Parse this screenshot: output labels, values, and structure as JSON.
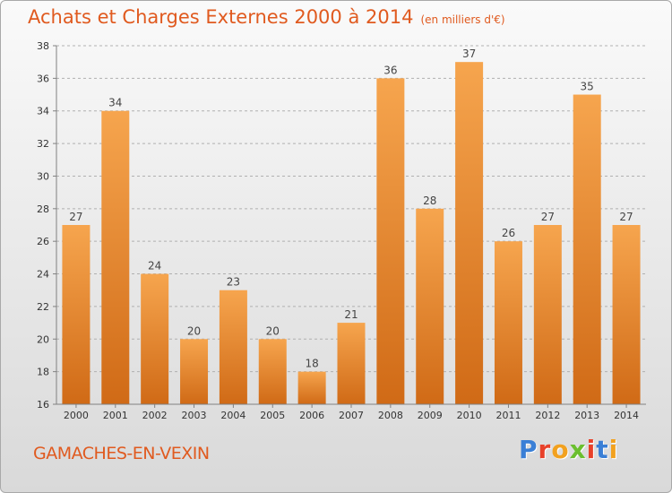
{
  "title": "Achats et Charges Externes 2000 à 2014",
  "unit": "(en milliers d'€)",
  "city": "GAMACHES-EN-VEXIN",
  "brand": {
    "text": "Proxiti",
    "colors": [
      "#3a7fd6",
      "#e8412a",
      "#f2a11f",
      "#6bbf2f",
      "#e8412a",
      "#3a7fd6",
      "#f2a11f"
    ]
  },
  "colors": {
    "accent": "#e05a1f",
    "bar_top": "#f6a54e",
    "bar_bottom": "#d06a16",
    "axis": "#808080",
    "grid": "#b0b0b0"
  },
  "chart_data": {
    "type": "bar",
    "categories": [
      "2000",
      "2001",
      "2002",
      "2003",
      "2004",
      "2005",
      "2006",
      "2007",
      "2008",
      "2009",
      "2010",
      "2011",
      "2012",
      "2013",
      "2014"
    ],
    "values": [
      27,
      34,
      24,
      20,
      23,
      20,
      18,
      21,
      36,
      28,
      37,
      26,
      27,
      35,
      27
    ],
    "ylim": [
      16,
      38
    ],
    "yticks": [
      16,
      18,
      20,
      22,
      24,
      26,
      28,
      30,
      32,
      34,
      36,
      38
    ],
    "grid": true,
    "legend": "none"
  }
}
